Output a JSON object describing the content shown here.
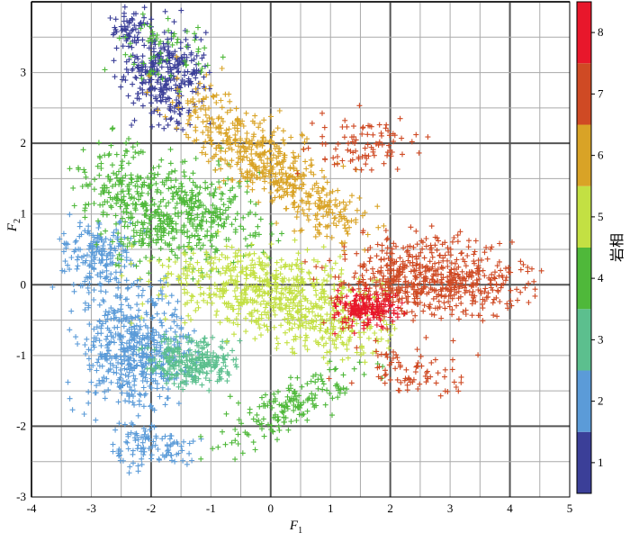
{
  "chart_data": {
    "type": "scatter",
    "title": "",
    "xlabel": "F",
    "xlabel_sub": "1",
    "ylabel": "F",
    "ylabel_sub": "2",
    "xlim": [
      -4,
      5
    ],
    "ylim": [
      -3,
      4
    ],
    "xticks": [
      "-4",
      "-3",
      "-2",
      "-1",
      "0",
      "1",
      "2",
      "3",
      "4",
      "5"
    ],
    "yticks": [
      "-3",
      "-2",
      "-1",
      "0",
      "1",
      "2",
      "3"
    ],
    "grid": true,
    "marker": "+",
    "colorbar": {
      "label": "岩相",
      "min": 0.5,
      "max": 8.5,
      "ticks": [
        "1",
        "2",
        "3",
        "4",
        "5",
        "6",
        "7",
        "8"
      ],
      "colors": [
        "#3b3f98",
        "#5b9bd8",
        "#5cbf8e",
        "#4fb83a",
        "#c3e043",
        "#d9a326",
        "#cf4a24",
        "#e8172b"
      ]
    },
    "series": [
      {
        "facies": 1,
        "color": "#3b3f98",
        "clusters": [
          {
            "cx": -1.75,
            "cy": 2.9,
            "sx": 0.35,
            "sy": 0.55,
            "n": 320,
            "rot": -0.9
          },
          {
            "cx": -2.3,
            "cy": 3.6,
            "sx": 0.2,
            "sy": 0.25,
            "n": 60,
            "rot": 0
          }
        ]
      },
      {
        "facies": 2,
        "color": "#5b9bd8",
        "clusters": [
          {
            "cx": -2.3,
            "cy": -0.9,
            "sx": 0.45,
            "sy": 0.7,
            "n": 520,
            "rot": 0
          },
          {
            "cx": -2.9,
            "cy": 0.4,
            "sx": 0.35,
            "sy": 0.4,
            "n": 180,
            "rot": 0
          },
          {
            "cx": -2.0,
            "cy": -2.3,
            "sx": 0.35,
            "sy": 0.25,
            "n": 100,
            "rot": 0
          }
        ]
      },
      {
        "facies": 3,
        "color": "#5cbf8e",
        "clusters": [
          {
            "cx": -1.3,
            "cy": -1.1,
            "sx": 0.35,
            "sy": 0.3,
            "n": 260,
            "rot": 0
          }
        ]
      },
      {
        "facies": 4,
        "color": "#4fb83a",
        "clusters": [
          {
            "cx": -1.5,
            "cy": 1.0,
            "sx": 0.65,
            "sy": 0.6,
            "n": 480,
            "rot": 0
          },
          {
            "cx": -2.6,
            "cy": 1.5,
            "sx": 0.35,
            "sy": 0.5,
            "n": 110,
            "rot": 0
          },
          {
            "cx": 0.3,
            "cy": -1.7,
            "sx": 0.6,
            "sy": 0.3,
            "n": 170,
            "rot": 0.4
          },
          {
            "cx": -1.8,
            "cy": 3.3,
            "sx": 0.5,
            "sy": 0.4,
            "n": 60,
            "rot": 0
          }
        ]
      },
      {
        "facies": 5,
        "color": "#c3e043",
        "clusters": [
          {
            "cx": -0.1,
            "cy": -0.1,
            "sx": 0.85,
            "sy": 0.5,
            "n": 560,
            "rot": -0.1
          },
          {
            "cx": 1.1,
            "cy": -0.6,
            "sx": 0.45,
            "sy": 0.35,
            "n": 140,
            "rot": 0
          }
        ]
      },
      {
        "facies": 6,
        "color": "#d9a326",
        "clusters": [
          {
            "cx": -0.3,
            "cy": 1.9,
            "sx": 0.7,
            "sy": 0.45,
            "n": 420,
            "rot": -0.55
          },
          {
            "cx": 0.9,
            "cy": 1.1,
            "sx": 0.5,
            "sy": 0.3,
            "n": 120,
            "rot": -0.4
          }
        ]
      },
      {
        "facies": 7,
        "color": "#cf4a24",
        "clusters": [
          {
            "cx": 2.5,
            "cy": 0.1,
            "sx": 0.65,
            "sy": 0.45,
            "n": 520,
            "rot": 0
          },
          {
            "cx": 1.5,
            "cy": 1.9,
            "sx": 0.45,
            "sy": 0.35,
            "n": 90,
            "rot": 0
          },
          {
            "cx": 2.5,
            "cy": -1.2,
            "sx": 0.5,
            "sy": 0.35,
            "n": 80,
            "rot": 0
          },
          {
            "cx": 3.5,
            "cy": 0.0,
            "sx": 0.45,
            "sy": 0.35,
            "n": 80,
            "rot": 0
          }
        ]
      },
      {
        "facies": 8,
        "color": "#e8172b",
        "clusters": [
          {
            "cx": 1.6,
            "cy": -0.35,
            "sx": 0.25,
            "sy": 0.2,
            "n": 170,
            "rot": 0
          }
        ]
      }
    ]
  }
}
